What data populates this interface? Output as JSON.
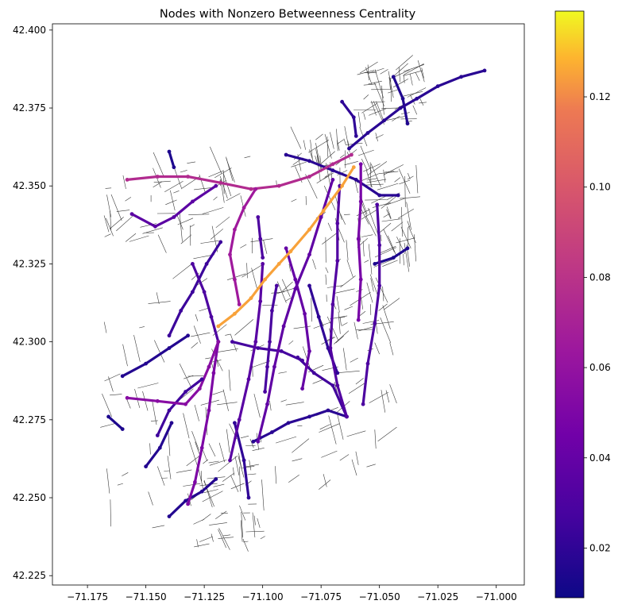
{
  "chart_data": {
    "type": "scatter",
    "title": "Nodes with Nonzero Betweenness Centrality",
    "xlabel": "",
    "ylabel": "",
    "xlim": [
      -71.19,
      -70.988
    ],
    "ylim": [
      42.222,
      42.402
    ],
    "x_ticks": [
      "−71.175",
      "−71.150",
      "−71.125",
      "−71.100",
      "−71.075",
      "−71.050",
      "−71.025",
      "−71.000"
    ],
    "x_tick_values": [
      -71.175,
      -71.15,
      -71.125,
      -71.1,
      -71.075,
      -71.05,
      -71.025,
      -71.0
    ],
    "y_ticks": [
      "42.225",
      "42.250",
      "42.275",
      "42.300",
      "42.325",
      "42.350",
      "42.375",
      "42.400"
    ],
    "y_tick_values": [
      42.225,
      42.25,
      42.275,
      42.3,
      42.325,
      42.35,
      42.375,
      42.4
    ],
    "colorbar": {
      "colormap": "plasma",
      "range": [
        0.009,
        0.139
      ],
      "ticks": [
        "0.02",
        "0.04",
        "0.06",
        "0.08",
        "0.10",
        "0.12"
      ],
      "tick_values": [
        0.02,
        0.04,
        0.06,
        0.08,
        0.1,
        0.12
      ]
    },
    "background_network_color": "#3a3a3a",
    "routes": [
      {
        "path": [
          [
            -71.119,
            42.305
          ],
          [
            -71.112,
            42.309
          ],
          [
            -71.105,
            42.314
          ],
          [
            -71.099,
            42.32
          ],
          [
            -71.093,
            42.325
          ],
          [
            -71.088,
            42.329
          ],
          [
            -71.08,
            42.336
          ],
          [
            -71.074,
            42.342
          ],
          [
            -71.066,
            42.35
          ],
          [
            -71.061,
            42.356
          ]
        ],
        "value": 0.125
      },
      {
        "path": [
          [
            -71.158,
            42.352
          ],
          [
            -71.145,
            42.353
          ],
          [
            -71.132,
            42.353
          ],
          [
            -71.118,
            42.351
          ],
          [
            -71.105,
            42.349
          ],
          [
            -71.093,
            42.35
          ],
          [
            -71.08,
            42.353
          ],
          [
            -71.07,
            42.357
          ],
          [
            -71.062,
            42.36
          ]
        ],
        "value": 0.075
      },
      {
        "path": [
          [
            -71.103,
            42.349
          ],
          [
            -71.108,
            42.343
          ],
          [
            -71.112,
            42.336
          ],
          [
            -71.114,
            42.328
          ],
          [
            -71.112,
            42.32
          ],
          [
            -71.11,
            42.312
          ]
        ],
        "value": 0.065
      },
      {
        "path": [
          [
            -71.119,
            42.3
          ],
          [
            -71.123,
            42.292
          ],
          [
            -71.127,
            42.285
          ],
          [
            -71.133,
            42.28
          ],
          [
            -71.145,
            42.281
          ],
          [
            -71.158,
            42.282
          ]
        ],
        "value": 0.055
      },
      {
        "path": [
          [
            -71.119,
            42.3
          ],
          [
            -71.121,
            42.29
          ],
          [
            -71.123,
            42.278
          ],
          [
            -71.126,
            42.266
          ],
          [
            -71.129,
            42.255
          ],
          [
            -71.132,
            42.248
          ]
        ],
        "value": 0.05
      },
      {
        "path": [
          [
            -71.058,
            42.357
          ],
          [
            -71.058,
            42.345
          ],
          [
            -71.059,
            42.333
          ],
          [
            -71.058,
            42.32
          ],
          [
            -71.059,
            42.307
          ]
        ],
        "value": 0.048
      },
      {
        "path": [
          [
            -71.09,
            42.33
          ],
          [
            -71.086,
            42.32
          ],
          [
            -71.082,
            42.309
          ],
          [
            -71.08,
            42.297
          ],
          [
            -71.083,
            42.285
          ]
        ],
        "value": 0.04
      },
      {
        "path": [
          [
            -71.07,
            42.352
          ],
          [
            -71.075,
            42.34
          ],
          [
            -71.08,
            42.328
          ],
          [
            -71.086,
            42.317
          ],
          [
            -71.091,
            42.305
          ],
          [
            -71.095,
            42.292
          ],
          [
            -71.098,
            42.28
          ],
          [
            -71.102,
            42.268
          ]
        ],
        "value": 0.038
      },
      {
        "path": [
          [
            -71.12,
            42.35
          ],
          [
            -71.13,
            42.345
          ],
          [
            -71.138,
            42.34
          ],
          [
            -71.146,
            42.337
          ],
          [
            -71.156,
            42.341
          ]
        ],
        "value": 0.036
      },
      {
        "path": [
          [
            -71.1,
            42.325
          ],
          [
            -71.101,
            42.313
          ],
          [
            -71.103,
            42.3
          ],
          [
            -71.106,
            42.288
          ],
          [
            -71.11,
            42.275
          ],
          [
            -71.114,
            42.262
          ]
        ],
        "value": 0.035
      },
      {
        "path": [
          [
            -71.067,
            42.35
          ],
          [
            -71.068,
            42.338
          ],
          [
            -71.068,
            42.326
          ],
          [
            -71.07,
            42.312
          ],
          [
            -71.071,
            42.298
          ],
          [
            -71.068,
            42.286
          ],
          [
            -71.064,
            42.276
          ]
        ],
        "value": 0.032
      },
      {
        "path": [
          [
            -71.051,
            42.344
          ],
          [
            -71.05,
            42.331
          ],
          [
            -71.05,
            42.318
          ],
          [
            -71.052,
            42.306
          ],
          [
            -71.055,
            42.293
          ],
          [
            -71.057,
            42.28
          ]
        ],
        "value": 0.03
      },
      {
        "path": [
          [
            -71.102,
            42.34
          ],
          [
            -71.101,
            42.333
          ],
          [
            -71.1,
            42.327
          ]
        ],
        "value": 0.03
      },
      {
        "path": [
          [
            -71.094,
            42.318
          ],
          [
            -71.096,
            42.31
          ],
          [
            -71.097,
            42.3
          ],
          [
            -71.098,
            42.292
          ],
          [
            -71.099,
            42.284
          ]
        ],
        "value": 0.028
      },
      {
        "path": [
          [
            -71.085,
            42.295
          ],
          [
            -71.078,
            42.29
          ],
          [
            -71.07,
            42.286
          ],
          [
            -71.064,
            42.276
          ]
        ],
        "value": 0.026
      },
      {
        "path": [
          [
            -71.13,
            42.325
          ],
          [
            -71.125,
            42.316
          ],
          [
            -71.122,
            42.308
          ],
          [
            -71.119,
            42.3
          ]
        ],
        "value": 0.03
      },
      {
        "path": [
          [
            -71.113,
            42.3
          ],
          [
            -71.102,
            42.298
          ],
          [
            -71.092,
            42.297
          ],
          [
            -71.083,
            42.294
          ]
        ],
        "value": 0.027
      },
      {
        "path": [
          [
            -71.145,
            42.27
          ],
          [
            -71.14,
            42.278
          ],
          [
            -71.133,
            42.284
          ],
          [
            -71.126,
            42.288
          ]
        ],
        "value": 0.025
      },
      {
        "path": [
          [
            -71.118,
            42.332
          ],
          [
            -71.124,
            42.325
          ],
          [
            -71.13,
            42.316
          ],
          [
            -71.135,
            42.31
          ],
          [
            -71.14,
            42.302
          ]
        ],
        "value": 0.024
      },
      {
        "path": [
          [
            -71.063,
            42.362
          ],
          [
            -71.055,
            42.367
          ],
          [
            -71.048,
            42.371
          ],
          [
            -71.041,
            42.375
          ],
          [
            -71.034,
            42.378
          ],
          [
            -71.025,
            42.382
          ],
          [
            -71.015,
            42.385
          ],
          [
            -71.005,
            42.387
          ]
        ],
        "value": 0.018
      },
      {
        "path": [
          [
            -71.06,
            42.366
          ],
          [
            -71.061,
            42.372
          ],
          [
            -71.066,
            42.377
          ]
        ],
        "value": 0.02
      },
      {
        "path": [
          [
            -71.08,
            42.318
          ],
          [
            -71.076,
            42.308
          ],
          [
            -71.072,
            42.298
          ],
          [
            -71.068,
            42.29
          ]
        ],
        "value": 0.02
      },
      {
        "path": [
          [
            -71.104,
            42.268
          ],
          [
            -71.096,
            42.271
          ],
          [
            -71.089,
            42.274
          ],
          [
            -71.08,
            42.276
          ],
          [
            -71.072,
            42.278
          ],
          [
            -71.064,
            42.276
          ]
        ],
        "value": 0.018
      },
      {
        "path": [
          [
            -71.112,
            42.274
          ],
          [
            -71.108,
            42.262
          ],
          [
            -71.106,
            42.25
          ]
        ],
        "value": 0.02
      },
      {
        "path": [
          [
            -71.15,
            42.26
          ],
          [
            -71.144,
            42.266
          ],
          [
            -71.139,
            42.274
          ]
        ],
        "value": 0.016
      },
      {
        "path": [
          [
            -71.14,
            42.244
          ],
          [
            -71.133,
            42.249
          ],
          [
            -71.126,
            42.252
          ],
          [
            -71.12,
            42.256
          ]
        ],
        "value": 0.016
      },
      {
        "path": [
          [
            -71.132,
            42.302
          ],
          [
            -71.14,
            42.298
          ],
          [
            -71.15,
            42.293
          ],
          [
            -71.16,
            42.289
          ]
        ],
        "value": 0.016
      },
      {
        "path": [
          [
            -71.09,
            42.36
          ],
          [
            -71.08,
            42.358
          ],
          [
            -71.07,
            42.355
          ],
          [
            -71.06,
            42.352
          ],
          [
            -71.05,
            42.347
          ],
          [
            -71.042,
            42.347
          ]
        ],
        "value": 0.018
      },
      {
        "path": [
          [
            -71.038,
            42.37
          ],
          [
            -71.04,
            42.378
          ],
          [
            -71.044,
            42.385
          ]
        ],
        "value": 0.015
      },
      {
        "path": [
          [
            -71.052,
            42.325
          ],
          [
            -71.044,
            42.327
          ],
          [
            -71.038,
            42.33
          ]
        ],
        "value": 0.014
      },
      {
        "path": [
          [
            -71.166,
            42.276
          ],
          [
            -71.16,
            42.272
          ]
        ],
        "value": 0.014
      },
      {
        "path": [
          [
            -71.138,
            42.356
          ],
          [
            -71.14,
            42.361
          ]
        ],
        "value": 0.014
      }
    ]
  }
}
